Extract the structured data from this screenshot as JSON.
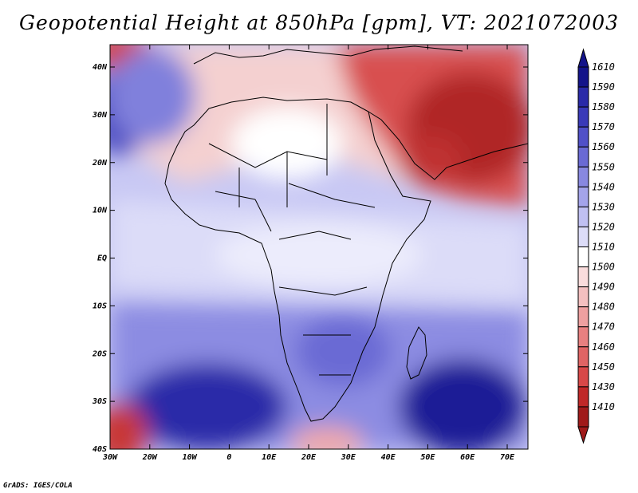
{
  "title": "Geopotential Height at 850hPa [gpm], VT: 2021072003",
  "credit": "GrADS: IGES/COLA",
  "map": {
    "lat_labels": [
      "40N",
      "30N",
      "20N",
      "10N",
      "EQ",
      "10S",
      "20S",
      "30S",
      "40S"
    ],
    "lon_labels": [
      "30W",
      "20W",
      "10W",
      "0",
      "10E",
      "20E",
      "30E",
      "40E",
      "50E",
      "60E",
      "70E"
    ]
  },
  "colorbar": {
    "labels": [
      "1410",
      "1430",
      "1450",
      "1460",
      "1470",
      "1480",
      "1490",
      "1500",
      "1510",
      "1520",
      "1530",
      "1540",
      "1550",
      "1560",
      "1570",
      "1580",
      "1590",
      "1610"
    ],
    "colors": [
      "#a01a1a",
      "#c02828",
      "#d84848",
      "#e06464",
      "#e88080",
      "#eea0a0",
      "#f4c0c0",
      "#fadcdc",
      "#ffffff",
      "#dcdcf8",
      "#c0c0f2",
      "#a4a4ea",
      "#8888e0",
      "#6a6ad4",
      "#5050c8",
      "#3a3ab8",
      "#2a2aa8",
      "#14148a"
    ]
  }
}
